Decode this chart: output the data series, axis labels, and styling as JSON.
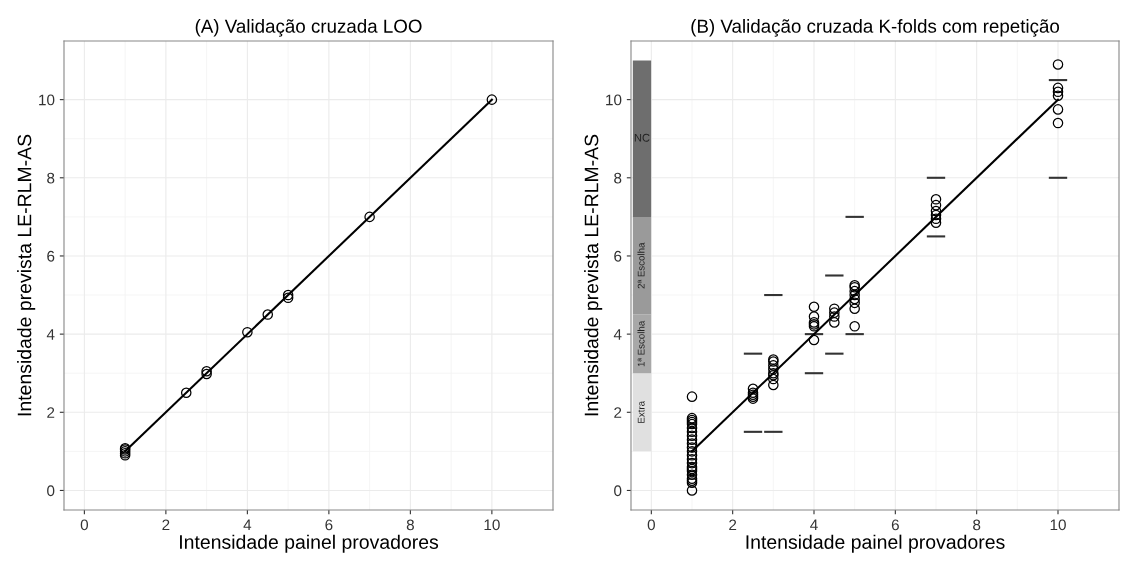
{
  "chart_data": [
    {
      "type": "scatter",
      "title": "(A) Validação cruzada LOO",
      "xlabel": "Intensidade painel provadores",
      "ylabel": "Intensidade prevista LE-RLM-AS",
      "xlim": [
        -0.5,
        11.5
      ],
      "ylim": [
        -0.5,
        11.5
      ],
      "xticks": [
        0,
        2,
        4,
        6,
        8,
        10
      ],
      "yticks": [
        0,
        2,
        4,
        6,
        8,
        10
      ],
      "grid": true,
      "series": [
        {
          "marker": "circle",
          "color": "#000000",
          "x": [
            1,
            1,
            1,
            1,
            1,
            2.5,
            3,
            3,
            4,
            4.5,
            5,
            5,
            7,
            10
          ],
          "values": [
            0.9,
            0.95,
            1.0,
            1.05,
            1.08,
            2.5,
            2.98,
            3.05,
            4.05,
            4.5,
            4.93,
            5.0,
            7.0,
            10.0
          ]
        },
        {
          "type": "line",
          "marker": "none",
          "color": "#000000",
          "x": [
            1,
            10
          ],
          "values": [
            1,
            10
          ]
        }
      ]
    },
    {
      "type": "scatter",
      "title": "(B) Validação cruzada K-folds com repetição",
      "xlabel": "Intensidade painel provadores",
      "ylabel": "Intensidade prevista LE-RLM-AS",
      "xlim": [
        -0.5,
        11.5
      ],
      "ylim": [
        -0.5,
        11.5
      ],
      "xticks": [
        0,
        2,
        4,
        6,
        8,
        10
      ],
      "yticks": [
        0,
        2,
        4,
        6,
        8,
        10
      ],
      "grid": true,
      "series": [
        {
          "type": "bar",
          "name": "Extra",
          "color": "#e0e0e0",
          "x": [
            -0.23
          ],
          "base": [
            1
          ],
          "values": [
            2
          ]
        },
        {
          "type": "bar",
          "name": "1ª Escolha",
          "color": "#a8a8a8",
          "x": [
            -0.23
          ],
          "base": [
            3
          ],
          "values": [
            1.5
          ]
        },
        {
          "type": "bar",
          "name": "2ª Escolha",
          "color": "#9a9a9a",
          "x": [
            -0.23
          ],
          "base": [
            4.5
          ],
          "values": [
            2.5
          ]
        },
        {
          "type": "bar",
          "name": "NC",
          "color": "#6e6e6e",
          "x": [
            -0.23
          ],
          "base": [
            7
          ],
          "values": [
            4
          ]
        },
        {
          "marker": "circle",
          "color": "#000000",
          "x": [
            1,
            1,
            1,
            1,
            1,
            1,
            1,
            1,
            1,
            1,
            1,
            1,
            1,
            1,
            1,
            1,
            1,
            1,
            1,
            1,
            1,
            1,
            1,
            2.5,
            2.5,
            2.5,
            2.5,
            2.5,
            3,
            3,
            3,
            3,
            3,
            3,
            3,
            3,
            4,
            4,
            4,
            4,
            4,
            4,
            4.5,
            4.5,
            4.5,
            4.5,
            5,
            5,
            5,
            5,
            5,
            5,
            5,
            5,
            7,
            7,
            7,
            7,
            7,
            7,
            10,
            10,
            10,
            10,
            10,
            10
          ],
          "values": [
            0,
            0.2,
            0.3,
            0.4,
            0.5,
            0.6,
            0.7,
            0.8,
            0.9,
            1.0,
            1.1,
            1.2,
            1.3,
            1.4,
            1.5,
            1.6,
            1.7,
            1.75,
            1.8,
            1.85,
            0.25,
            0.55,
            2.4,
            2.35,
            2.4,
            2.45,
            2.5,
            2.6,
            2.7,
            2.85,
            2.95,
            3.0,
            3.1,
            3.2,
            3.3,
            3.35,
            3.85,
            4.2,
            4.25,
            4.3,
            4.45,
            4.7,
            4.3,
            4.45,
            4.55,
            4.65,
            4.2,
            4.65,
            4.8,
            4.9,
            5.0,
            5.1,
            5.2,
            5.25,
            6.85,
            6.95,
            7.05,
            7.15,
            7.3,
            7.45,
            9.4,
            9.75,
            10.1,
            10.2,
            10.3,
            10.9
          ]
        },
        {
          "type": "line",
          "marker": "none",
          "color": "#333333",
          "x": [
            2.3,
            2.7
          ],
          "values": [
            3.5,
            3.5
          ]
        },
        {
          "type": "line",
          "marker": "none",
          "color": "#333333",
          "x": [
            2.3,
            2.7
          ],
          "values": [
            1.5,
            1.5
          ]
        },
        {
          "type": "line",
          "marker": "none",
          "color": "#333333",
          "x": [
            2.8,
            3.2
          ],
          "values": [
            5,
            5
          ]
        },
        {
          "type": "line",
          "marker": "none",
          "color": "#333333",
          "x": [
            2.8,
            3.2
          ],
          "values": [
            1.5,
            1.5
          ]
        },
        {
          "type": "line",
          "marker": "none",
          "color": "#333333",
          "x": [
            3.8,
            4.2
          ],
          "values": [
            4,
            4
          ]
        },
        {
          "type": "line",
          "marker": "none",
          "color": "#333333",
          "x": [
            3.8,
            4.2
          ],
          "values": [
            3,
            3
          ]
        },
        {
          "type": "line",
          "marker": "none",
          "color": "#333333",
          "x": [
            4.3,
            4.7
          ],
          "values": [
            5.5,
            5.5
          ]
        },
        {
          "type": "line",
          "marker": "none",
          "color": "#333333",
          "x": [
            4.3,
            4.7
          ],
          "values": [
            3.5,
            3.5
          ]
        },
        {
          "type": "line",
          "marker": "none",
          "color": "#333333",
          "x": [
            4.8,
            5.2
          ],
          "values": [
            7,
            7
          ]
        },
        {
          "type": "line",
          "marker": "none",
          "color": "#333333",
          "x": [
            4.8,
            5.2
          ],
          "values": [
            4,
            4
          ]
        },
        {
          "type": "line",
          "marker": "none",
          "color": "#333333",
          "x": [
            6.8,
            7.2
          ],
          "values": [
            8,
            8
          ]
        },
        {
          "type": "line",
          "marker": "none",
          "color": "#333333",
          "x": [
            6.8,
            7.2
          ],
          "values": [
            6.5,
            6.5
          ]
        },
        {
          "type": "line",
          "marker": "none",
          "color": "#333333",
          "x": [
            9.8,
            10.2
          ],
          "values": [
            10.5,
            10.5
          ]
        },
        {
          "type": "line",
          "marker": "none",
          "color": "#333333",
          "x": [
            9.8,
            10.2
          ],
          "values": [
            8,
            8
          ]
        },
        {
          "type": "line",
          "marker": "none",
          "color": "#000000",
          "x": [
            1,
            10
          ],
          "values": [
            1,
            10
          ]
        }
      ]
    }
  ]
}
